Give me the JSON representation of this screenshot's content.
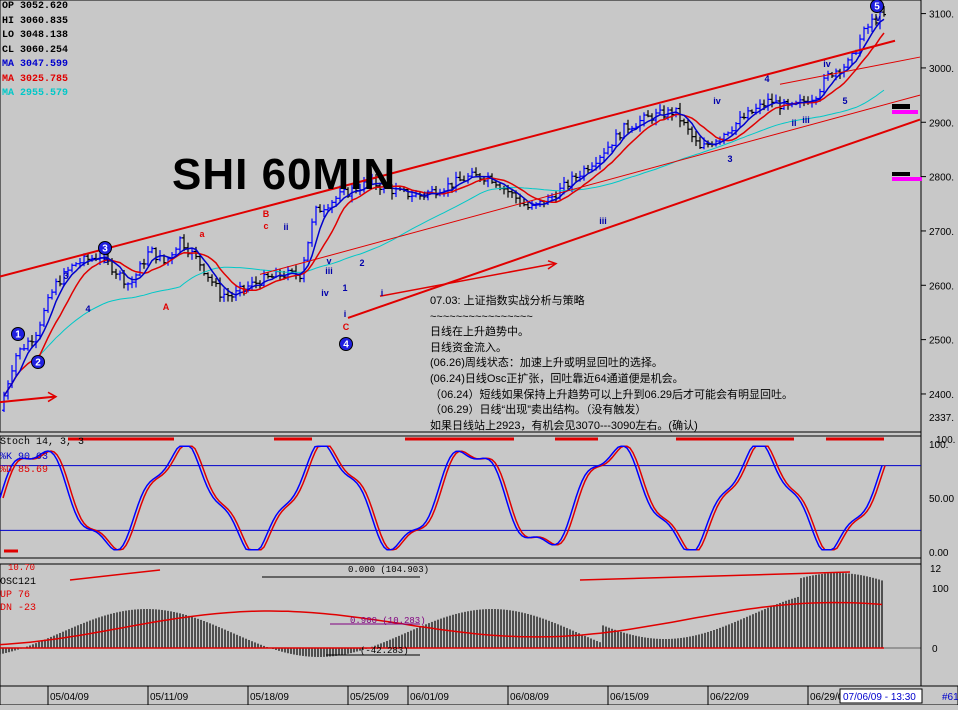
{
  "chart_data": {
    "type": "candlestick-ohlc",
    "symbol_label": "SHI 60MIN",
    "quote_box": [
      {
        "label": "OP",
        "value": "3052.620",
        "color": "#000000"
      },
      {
        "label": "HI",
        "value": "3060.835",
        "color": "#000000"
      },
      {
        "label": "LO",
        "value": "3048.138",
        "color": "#000000"
      },
      {
        "label": "CL",
        "value": "3060.254",
        "color": "#000000"
      },
      {
        "label": "MA",
        "value": "3047.599",
        "color": "#0000cc"
      },
      {
        "label": "MA",
        "value": "3025.785",
        "color": "#e00000"
      },
      {
        "label": "MA",
        "value": "2955.579",
        "color": "#00c8c8"
      }
    ],
    "price_axis": {
      "ylim": [
        2330,
        3125
      ],
      "ticks": [
        "3100.",
        "3000.",
        "2900.",
        "2800.",
        "2700.",
        "2600.",
        "2500.",
        "2400."
      ],
      "last_price_tag": "2337."
    },
    "date_axis": {
      "labels": [
        "05/04/09",
        "05/11/09",
        "05/18/09",
        "05/25/09",
        "06/01/09",
        "06/08/09",
        "06/15/09",
        "06/22/09",
        "06/29/09"
      ],
      "cursor_label": "07/06/09 - 13:30",
      "right_tag": "#61"
    },
    "wave_labels": [
      {
        "text": "1",
        "circled": true
      },
      {
        "text": "2",
        "circled": true
      },
      {
        "text": "3",
        "circled": true
      },
      {
        "text": "4",
        "circled": true
      },
      {
        "text": "5",
        "circled": true
      },
      {
        "text": "3",
        "circled": false
      },
      {
        "text": "4",
        "circled": false
      },
      {
        "text": "5",
        "circled": false
      },
      {
        "text": "A",
        "circled": false
      },
      {
        "text": "a",
        "circled": false
      },
      {
        "text": "b",
        "circled": false
      },
      {
        "text": "B",
        "circled": false
      },
      {
        "text": "c",
        "circled": false
      },
      {
        "text": "C",
        "circled": false
      },
      {
        "text": "i",
        "circled": false
      },
      {
        "text": "ii",
        "circled": false
      },
      {
        "text": "iii",
        "circled": false
      },
      {
        "text": "iv",
        "circled": false
      },
      {
        "text": "v",
        "circled": false
      },
      {
        "text": "1",
        "circled": false
      },
      {
        "text": "2",
        "circled": false
      },
      {
        "text": "i",
        "circled": false
      },
      {
        "text": "ii",
        "circled": false
      },
      {
        "text": "iii",
        "circled": false
      },
      {
        "text": "iv",
        "circled": false
      },
      {
        "text": "3",
        "circled": false
      },
      {
        "text": "4",
        "circled": false
      },
      {
        "text": "ii",
        "circled": false
      },
      {
        "text": "iii",
        "circled": false
      },
      {
        "text": "iv",
        "circled": false
      },
      {
        "text": "5",
        "circled": false
      },
      {
        "text": "v",
        "circled": false
      }
    ],
    "stoch_panel": {
      "title": "Stoch 14, 3, 3",
      "k_label": "%K",
      "k_value": "90.03",
      "d_label": "%D",
      "d_value": "85.69",
      "ticks": [
        "100.",
        "50.00",
        "0.00"
      ],
      "top_tag": "100."
    },
    "osc_panel": {
      "title": "OSC121",
      "up_label": "UP",
      "up_value": "76",
      "dn_label": "DN",
      "dn_value": "-23",
      "partial_label": "10.70",
      "fib_labels": [
        "0.000 (104.903)",
        "0.900 (10.283)",
        "(-42.283)"
      ],
      "ticks": [
        "100",
        "0"
      ],
      "top_tag": "12"
    }
  },
  "annotation": {
    "title": "07.03: 上证指数实战分析与策略",
    "separator": "~~~~~~~~~~~~~~~~",
    "lines": [
      "日线在上升趋势中。",
      "日线资金流入。",
      "(06.26)周线状态：加速上升或明显回吐的选择。",
      "(06.24)日线Osc正扩张，回吐靠近64通道便是机会。",
      "（06.24）短线如果保持上升趋势可以上升到06.29后才可能会有明显回吐。",
      "（06.29）日线“出现”卖出结构。（没有触发）",
      "如果日线站上2923，有机会见3070---3090左右。(确认)"
    ]
  },
  "colors": {
    "background": "#c8c8c8",
    "up_bar": "#0000ff",
    "down_bar": "#000000",
    "ma_fast": "#0000cc",
    "ma_mid": "#e00000",
    "ma_slow": "#00c8c8",
    "trend": "#e00000",
    "osc_hist": "#000000"
  }
}
